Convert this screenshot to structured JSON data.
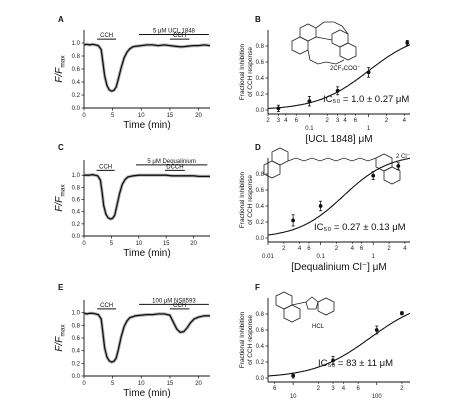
{
  "chart_data": [
    {
      "panel": "A",
      "type": "line",
      "xlabel": "Time (min)",
      "ylabel_main": "F/F",
      "ylabel_sub": "max",
      "xlim": [
        0,
        22
      ],
      "ylim": [
        0,
        1.2
      ],
      "xticks": [
        0,
        5,
        10,
        15,
        20
      ],
      "yticks": [
        0.0,
        0.2,
        0.4,
        0.6,
        0.8,
        1.0
      ],
      "ytick_labels": [
        "0.0",
        "0.2",
        "0.4",
        "0.6",
        "0.8",
        "1.0"
      ],
      "bars": [
        {
          "label": "CCH",
          "x0": 2.3,
          "x1": 5.6,
          "y": 1.06
        },
        {
          "label": "CCH",
          "x0": 15.0,
          "x1": 18.4,
          "y": 1.06
        },
        {
          "label": "5 μM UCL 1848",
          "x0": 9.6,
          "x1": 21.8,
          "y": 1.13
        }
      ],
      "series": [
        {
          "x": [
            0,
            0.5,
            1,
            1.5,
            2,
            2.5,
            3,
            3.3,
            3.6,
            4.0,
            4.4,
            4.8,
            5.2,
            5.6,
            6.0,
            6.5,
            7.0,
            7.5,
            8.0,
            8.5,
            9.0,
            10,
            11,
            12,
            13,
            14,
            15,
            16,
            17,
            18,
            19,
            20,
            21,
            22
          ],
          "y": [
            0.97,
            0.98,
            0.97,
            0.98,
            0.97,
            0.96,
            0.9,
            0.7,
            0.5,
            0.35,
            0.28,
            0.26,
            0.27,
            0.32,
            0.45,
            0.62,
            0.77,
            0.86,
            0.91,
            0.94,
            0.95,
            0.96,
            0.97,
            0.97,
            0.96,
            0.97,
            0.96,
            0.95,
            0.94,
            0.95,
            0.96,
            0.96,
            0.97,
            0.96
          ]
        }
      ]
    },
    {
      "panel": "C",
      "type": "line",
      "xlabel": "Time (min)",
      "ylabel_main": "F/F",
      "ylabel_sub": "max",
      "xlim": [
        0,
        23
      ],
      "ylim": [
        0,
        1.25
      ],
      "xticks": [
        0,
        5,
        10,
        15,
        20
      ],
      "yticks": [
        0.0,
        0.2,
        0.4,
        0.6,
        0.8,
        1.0
      ],
      "ytick_labels": [
        "0.0",
        "0.2",
        "0.4",
        "0.6",
        "0.8",
        "1.0"
      ],
      "bars": [
        {
          "label": "CCH",
          "x0": 2.3,
          "x1": 5.6,
          "y": 1.08
        },
        {
          "label": "DCCH",
          "x0": 14.8,
          "x1": 18.4,
          "y": 1.08
        },
        {
          "label": "5 μM Dequalinium",
          "x0": 9.5,
          "x1": 22.5,
          "y": 1.17
        }
      ],
      "series": [
        {
          "x": [
            0,
            0.5,
            1,
            1.5,
            2,
            2.5,
            3,
            3.3,
            3.6,
            4.0,
            4.4,
            4.8,
            5.2,
            5.6,
            6.0,
            6.5,
            7.0,
            7.5,
            8.0,
            9.0,
            10,
            11,
            12,
            13,
            14,
            15,
            16,
            17,
            18,
            19,
            20,
            21,
            22,
            23
          ],
          "y": [
            1.0,
            1.0,
            1.0,
            1.01,
            1.0,
            0.99,
            0.92,
            0.72,
            0.5,
            0.36,
            0.3,
            0.28,
            0.29,
            0.34,
            0.5,
            0.7,
            0.85,
            0.93,
            0.97,
            0.99,
            1.0,
            1.0,
            1.0,
            1.0,
            1.0,
            1.0,
            0.99,
            0.99,
            0.99,
            0.99,
            0.99,
            0.98,
            0.98,
            0.98
          ]
        }
      ]
    },
    {
      "panel": "E",
      "type": "line",
      "xlabel": "Time (min)",
      "ylabel_main": "F/F",
      "ylabel_sub": "max",
      "xlim": [
        0,
        22
      ],
      "ylim": [
        0,
        1.2
      ],
      "xticks": [
        0,
        5,
        10,
        15,
        20
      ],
      "yticks": [
        0.0,
        0.2,
        0.4,
        0.6,
        0.8,
        1.0
      ],
      "ytick_labels": [
        "0.0",
        "0.2",
        "0.4",
        "0.6",
        "0.8",
        "1.0"
      ],
      "bars": [
        {
          "label": "CCH",
          "x0": 2.3,
          "x1": 5.6,
          "y": 1.06
        },
        {
          "label": "CCH",
          "x0": 15.0,
          "x1": 18.4,
          "y": 1.06
        },
        {
          "label": "100 μM NS8593",
          "x0": 9.6,
          "x1": 21.8,
          "y": 1.13
        }
      ],
      "series": [
        {
          "x": [
            0,
            0.5,
            1,
            1.5,
            2,
            2.5,
            3,
            3.3,
            3.6,
            4.0,
            4.4,
            4.8,
            5.2,
            5.6,
            6.0,
            6.5,
            7.0,
            7.5,
            8.0,
            9.0,
            10,
            11,
            12,
            13,
            14,
            15,
            15.6,
            16.2,
            16.8,
            17.4,
            18.0,
            18.6,
            19.2,
            20,
            21,
            22
          ],
          "y": [
            0.99,
            0.98,
            0.99,
            0.99,
            0.98,
            0.97,
            0.9,
            0.68,
            0.45,
            0.3,
            0.24,
            0.22,
            0.23,
            0.28,
            0.42,
            0.62,
            0.78,
            0.87,
            0.92,
            0.95,
            0.96,
            0.97,
            0.97,
            0.98,
            0.98,
            0.96,
            0.85,
            0.74,
            0.69,
            0.7,
            0.76,
            0.84,
            0.9,
            0.93,
            0.95,
            0.95
          ]
        }
      ]
    },
    {
      "panel": "B",
      "type": "scatter",
      "xlabel": "[UCL 1848] μM",
      "ylabel_line1": "Fractional Inhibition",
      "ylabel_line2": "of CCH response",
      "xscale": "log",
      "xlim": [
        0.02,
        5
      ],
      "ylim": [
        -0.05,
        1.0
      ],
      "yticks": [
        0.0,
        0.2,
        0.4,
        0.6,
        0.8
      ],
      "ytick_labels": [
        "0.0",
        "0.2",
        "0.4",
        "0.6",
        "0.8"
      ],
      "xtick_majors": [
        {
          "v": 0.1,
          "label": "0.1"
        },
        {
          "v": 1,
          "label": "1"
        }
      ],
      "xtick_minors": [
        {
          "v": 0.02,
          "label": "2"
        },
        {
          "v": 0.03,
          "label": "3"
        },
        {
          "v": 0.04,
          "label": "4"
        },
        {
          "v": 0.06,
          "label": "6"
        },
        {
          "v": 0.2,
          "label": "2"
        },
        {
          "v": 0.3,
          "label": "3"
        },
        {
          "v": 0.4,
          "label": "4"
        },
        {
          "v": 0.6,
          "label": "6"
        },
        {
          "v": 2,
          "label": "2"
        },
        {
          "v": 4,
          "label": "4"
        }
      ],
      "annotation": "2CF₃COO⁻",
      "ic50_label": "IC₅₀ = 1.0 ± 0.27 μM",
      "points": [
        {
          "x": 0.03,
          "y": 0.02,
          "err": 0.04
        },
        {
          "x": 0.1,
          "y": 0.11,
          "err": 0.06
        },
        {
          "x": 0.3,
          "y": 0.24,
          "err": 0.05
        },
        {
          "x": 1.0,
          "y": 0.47,
          "err": 0.06
        },
        {
          "x": 4.5,
          "y": 0.84,
          "err": 0.03
        }
      ],
      "fit": {
        "ic50": 1.0,
        "hill": 1.0,
        "top": 0.98
      }
    },
    {
      "panel": "D",
      "type": "scatter",
      "xlabel": "[Dequalinium Cl⁻] μM",
      "ylabel_line1": "Fractional Inhibition",
      "ylabel_line2": "of CCH response",
      "xscale": "log",
      "xlim": [
        0.01,
        5
      ],
      "ylim": [
        -0.05,
        1.0
      ],
      "yticks": [
        0.0,
        0.2,
        0.4,
        0.6,
        0.8
      ],
      "ytick_labels": [
        "0.0",
        "0.2",
        "0.4",
        "0.6",
        "0.8"
      ],
      "xtick_majors": [
        {
          "v": 0.01,
          "label": "0.01"
        },
        {
          "v": 0.1,
          "label": "0.1"
        },
        {
          "v": 1,
          "label": "1"
        }
      ],
      "xtick_minors": [
        {
          "v": 0.02,
          "label": "2"
        },
        {
          "v": 0.04,
          "label": "4"
        },
        {
          "v": 0.06,
          "label": "6"
        },
        {
          "v": 0.2,
          "label": "2"
        },
        {
          "v": 0.4,
          "label": "4"
        },
        {
          "v": 0.6,
          "label": "6"
        },
        {
          "v": 2,
          "label": "2"
        },
        {
          "v": 4,
          "label": "4"
        }
      ],
      "annotation": "2 Cl⁻",
      "ic50_label": "IC₅₀ = 0.27 ± 0.13 μM",
      "points": [
        {
          "x": 0.03,
          "y": 0.22,
          "err": 0.07
        },
        {
          "x": 0.1,
          "y": 0.4,
          "err": 0.06
        },
        {
          "x": 1.0,
          "y": 0.78,
          "err": 0.05
        },
        {
          "x": 3.0,
          "y": 0.9,
          "err": 0.04
        }
      ],
      "fit": {
        "ic50": 0.27,
        "hill": 1.0,
        "top": 1.05
      }
    },
    {
      "panel": "F",
      "type": "scatter",
      "xlabel": "[NS8593] μM",
      "ylabel_line1": "Fractional Inhibition",
      "ylabel_line2": "of CCH response",
      "xscale": "log",
      "xlim": [
        5,
        250
      ],
      "ylim": [
        -0.05,
        1.0
      ],
      "yticks": [
        0.0,
        0.2,
        0.4,
        0.6,
        0.8
      ],
      "ytick_labels": [
        "0.0",
        "0.2",
        "0.4",
        "0.6",
        "0.8"
      ],
      "xtick_majors": [
        {
          "v": 10,
          "label": "10"
        },
        {
          "v": 100,
          "label": "100"
        }
      ],
      "xtick_minors": [
        {
          "v": 6,
          "label": "6"
        },
        {
          "v": 20,
          "label": "2"
        },
        {
          "v": 30,
          "label": "3"
        },
        {
          "v": 40,
          "label": "4"
        },
        {
          "v": 60,
          "label": "6"
        },
        {
          "v": 200,
          "label": "2"
        }
      ],
      "annotation": "HCL",
      "ic50_label": "IC₅₀ = 83 ± 11 μM",
      "points": [
        {
          "x": 10,
          "y": 0.03,
          "err": 0.03
        },
        {
          "x": 30,
          "y": 0.22,
          "err": 0.05
        },
        {
          "x": 100,
          "y": 0.6,
          "err": 0.05
        },
        {
          "x": 200,
          "y": 0.81,
          "err": 0.02
        }
      ],
      "fit": {
        "ic50": 83,
        "hill": 1.3,
        "top": 1.0
      }
    }
  ]
}
